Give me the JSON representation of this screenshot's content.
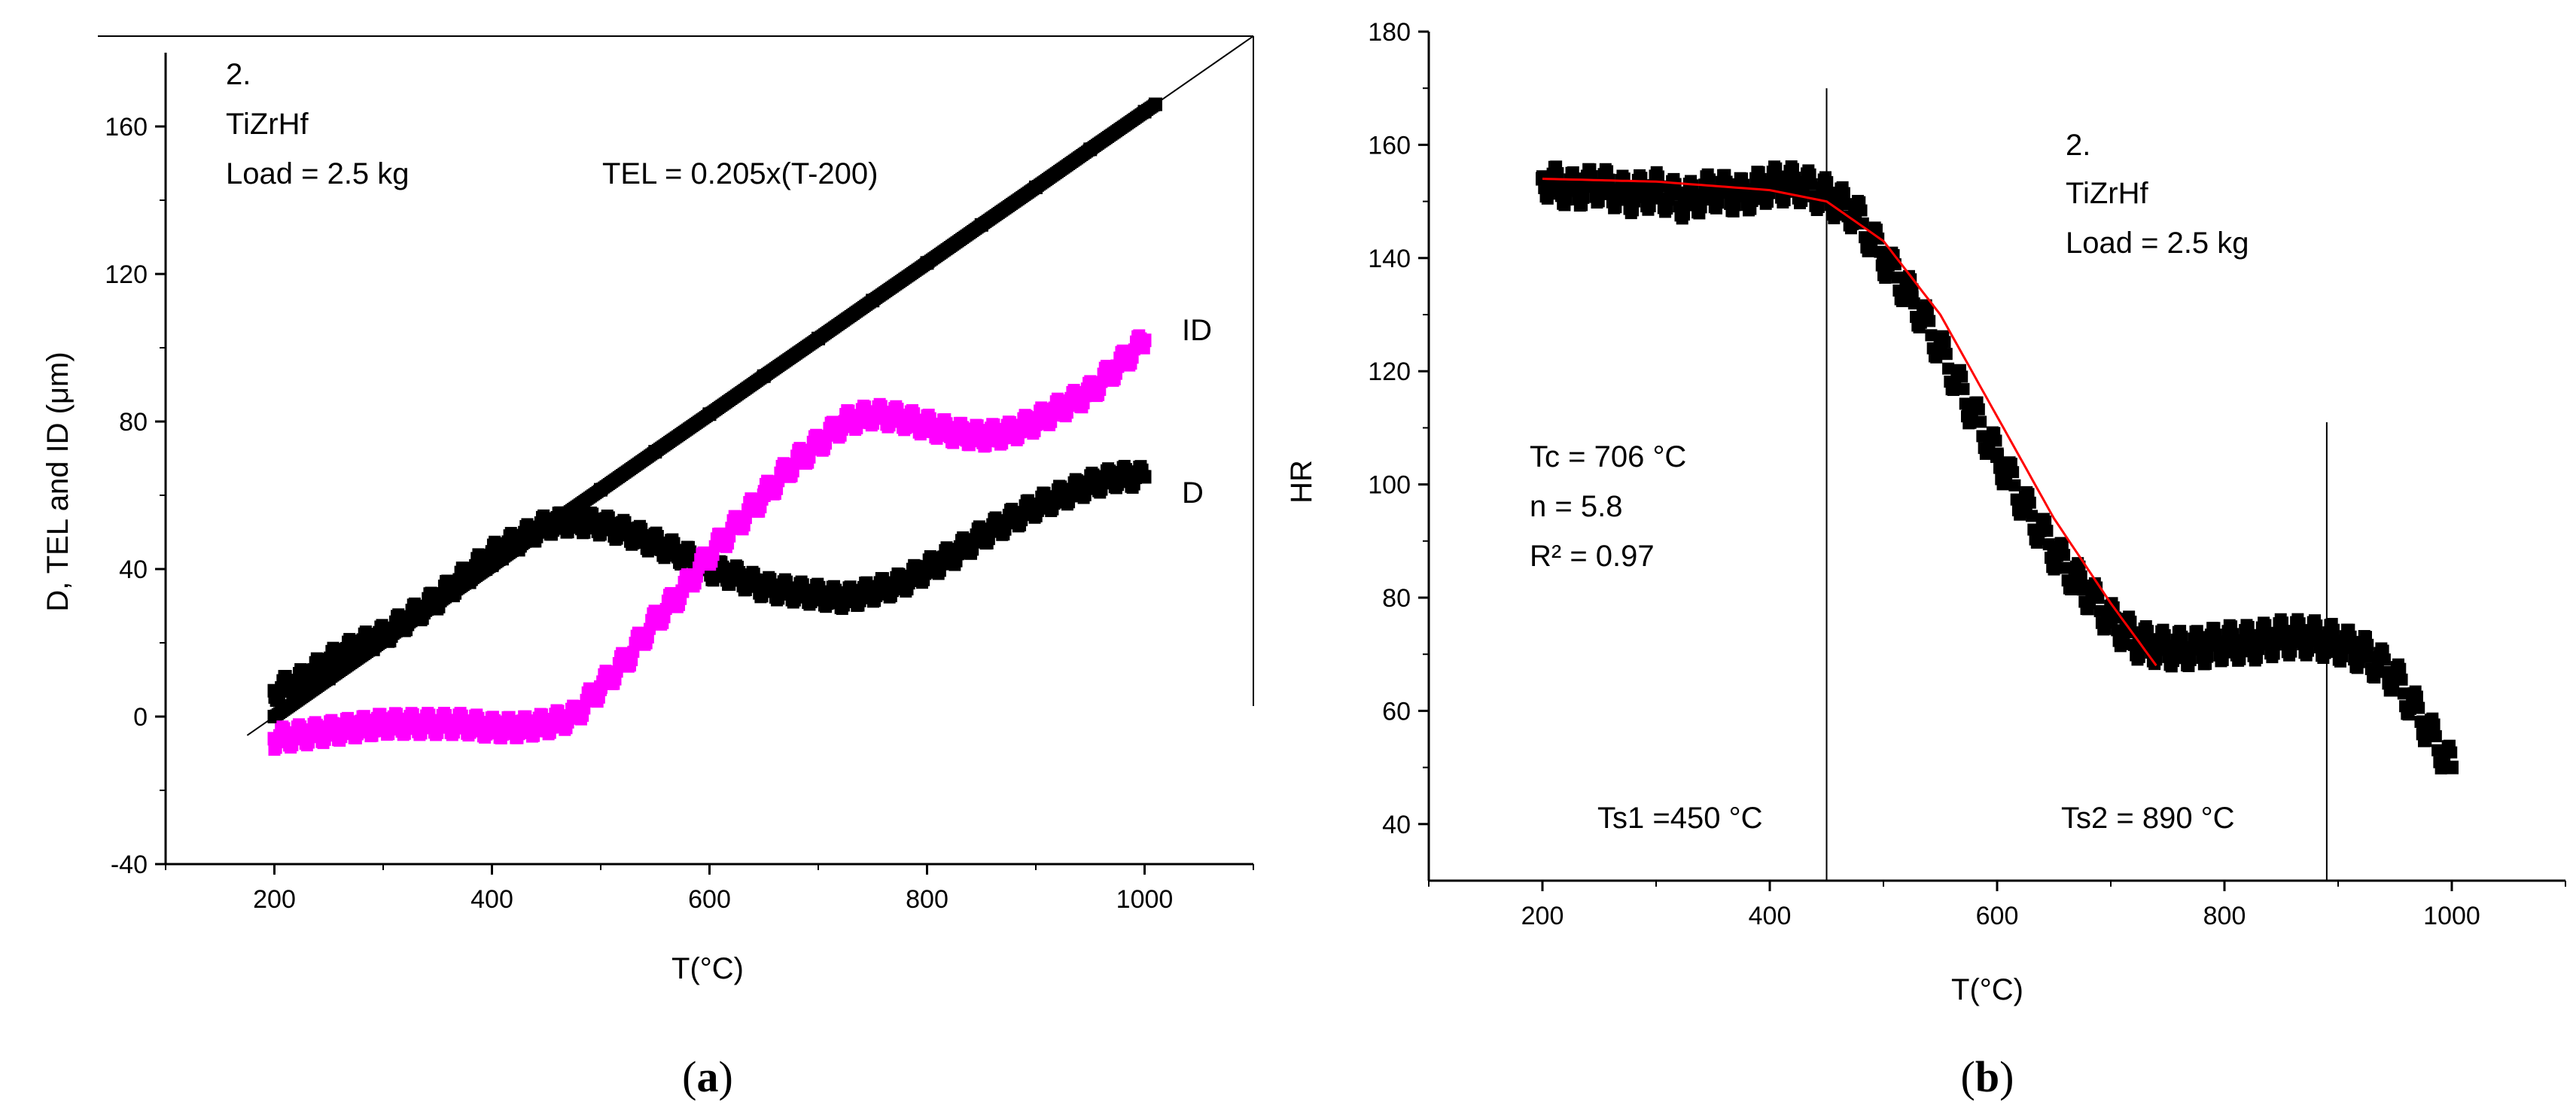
{
  "chart_data": [
    {
      "type": "scatter",
      "panel_caption": "(a)",
      "caption_letter": "a",
      "xlabel": "T(°C)",
      "ylabel": "D, TEL and ID (μm)",
      "xlim": [
        100,
        1100
      ],
      "ylim": [
        -40,
        180
      ],
      "xticks": [
        200,
        400,
        600,
        800,
        1000
      ],
      "yticks": [
        -40,
        0,
        40,
        80,
        120,
        160
      ],
      "annotations": {
        "sample_number": "2.",
        "alloy": "TiZrHf",
        "load": "Load = 2.5 kg",
        "equation": "TEL = 0.205x(T-200)"
      },
      "series": [
        {
          "name": "TEL",
          "color": "#000000",
          "x": [
            200,
            250,
            300,
            350,
            400,
            450,
            500,
            550,
            600,
            650,
            700,
            750,
            800,
            850,
            900,
            950,
            1000,
            1010
          ],
          "y": [
            0,
            10.3,
            20.5,
            30.8,
            41,
            51.3,
            61.5,
            71.8,
            82,
            92.3,
            102.5,
            112.8,
            123,
            133.3,
            143.5,
            153.8,
            164,
            166
          ]
        },
        {
          "name": "D",
          "color": "#000000",
          "x": [
            200,
            225,
            250,
            275,
            300,
            325,
            350,
            375,
            400,
            425,
            450,
            475,
            500,
            525,
            550,
            575,
            600,
            625,
            650,
            675,
            700,
            725,
            750,
            775,
            800,
            825,
            850,
            875,
            900,
            925,
            950,
            975,
            1000
          ],
          "y": [
            7,
            10,
            15,
            19,
            22,
            27,
            32,
            38,
            44,
            48,
            52,
            53,
            52,
            50,
            47,
            44,
            40,
            38,
            35,
            34,
            33,
            32,
            34,
            36,
            40,
            44,
            49,
            53,
            57,
            60,
            63,
            65,
            65
          ]
        },
        {
          "name": "ID",
          "color": "#ff00ff",
          "x": [
            200,
            225,
            250,
            275,
            300,
            325,
            350,
            375,
            400,
            425,
            450,
            475,
            500,
            525,
            550,
            575,
            600,
            625,
            650,
            675,
            700,
            725,
            750,
            775,
            800,
            825,
            850,
            875,
            900,
            925,
            950,
            975,
            1000
          ],
          "y": [
            -6,
            -5,
            -4,
            -3,
            -2,
            -2,
            -2,
            -2,
            -3,
            -3,
            -2,
            0,
            8,
            16,
            26,
            34,
            44,
            52,
            60,
            68,
            74,
            80,
            82,
            81,
            79,
            77,
            76,
            77,
            80,
            84,
            88,
            95,
            102
          ]
        }
      ],
      "series_labels": {
        "ID": "ID",
        "D": "D"
      },
      "fit_line": {
        "x": [
          175,
          1100
        ],
        "y": [
          -5.1,
          184.5
        ]
      },
      "ref_lines": {
        "h_y": 184.5,
        "v_x": 1100
      }
    },
    {
      "type": "scatter",
      "panel_caption": "(b)",
      "caption_letter": "b",
      "xlabel": "T(°C)",
      "ylabel": "HR",
      "xlim": [
        100,
        1100
      ],
      "ylim": [
        30,
        180
      ],
      "xticks": [
        200,
        400,
        600,
        800,
        1000
      ],
      "yticks": [
        40,
        60,
        80,
        100,
        120,
        140,
        160,
        180
      ],
      "annotations": {
        "sample_number": "2.",
        "alloy": "TiZrHf",
        "load": "Load = 2.5 kg",
        "tc": "Tc = 706 °C",
        "n": "n = 5.8",
        "r2": "R² = 0.97",
        "ts1": "Ts1 =450 °C",
        "ts2": "Ts2 = 890 °C"
      },
      "series": [
        {
          "name": "HR",
          "color": "#000000",
          "x": [
            200,
            225,
            250,
            275,
            300,
            325,
            350,
            375,
            400,
            425,
            450,
            475,
            500,
            525,
            550,
            575,
            600,
            625,
            650,
            675,
            700,
            725,
            750,
            775,
            800,
            825,
            850,
            875,
            900,
            925,
            950,
            975,
            1000
          ],
          "y": [
            154,
            152,
            153,
            151,
            152,
            150,
            152,
            151,
            153,
            153,
            151,
            148,
            140,
            133,
            124,
            114,
            105,
            96,
            88,
            82,
            76,
            72,
            71,
            71,
            72,
            72,
            73,
            73,
            72,
            70,
            66,
            58,
            50
          ]
        }
      ],
      "fit": {
        "name": "fit",
        "color": "#ff0000",
        "x": [
          200,
          300,
          400,
          450,
          500,
          550,
          600,
          650,
          700,
          740
        ],
        "y": [
          154,
          153.5,
          152,
          150,
          143,
          130,
          112,
          94,
          79,
          68
        ]
      },
      "vlines": [
        {
          "x": 450,
          "y": [
            30,
            170
          ]
        },
        {
          "x": 890,
          "y": [
            30,
            111
          ]
        }
      ]
    }
  ]
}
